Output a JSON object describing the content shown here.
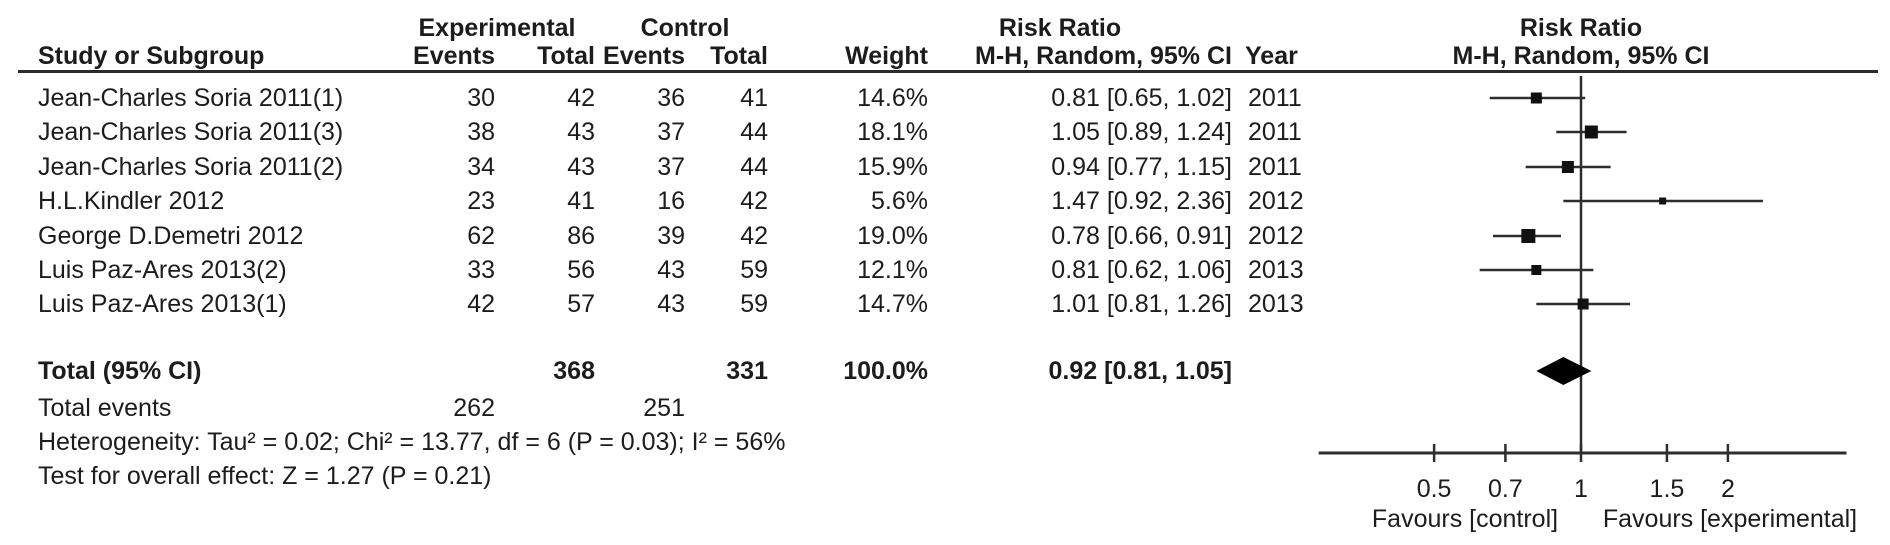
{
  "header": {
    "group_experimental": "Experimental",
    "group_control": "Control",
    "risk_ratio_left": "Risk Ratio",
    "risk_ratio_right": "Risk Ratio",
    "method_left": "M-H, Random, 95% CI",
    "method_right": "M-H, Random, 95% CI",
    "study": "Study or Subgroup",
    "events": "Events",
    "total": "Total",
    "events2": "Events",
    "total2": "Total",
    "weight": "Weight",
    "year": "Year"
  },
  "total_row": {
    "label": "Total (95% CI)",
    "exp_total": 368,
    "ctl_total": 331,
    "weight": "100.0%",
    "rr_text": "0.92 [0.81, 1.05]"
  },
  "total_events": {
    "label": "Total events",
    "exp": 262,
    "ctl": 251
  },
  "heterogeneity": "Heterogeneity: Tau² = 0.02; Chi² = 13.77, df = 6 (P = 0.03); I² = 56%",
  "overall_effect": "Test for overall effect: Z = 1.27 (P = 0.21)",
  "chart_data": {
    "type": "forest",
    "x_scale": "log",
    "xlim": [
      0.29,
      3.5
    ],
    "ticks": [
      0.5,
      0.7,
      1,
      1.5,
      2
    ],
    "tick_labels": [
      "0.5",
      "0.7",
      "1",
      "1.5",
      "2"
    ],
    "favours_left": "Favours [control]",
    "favours_right": "Favours [experimental]",
    "no_effect_value": 1,
    "studies": [
      {
        "name": "Jean-Charles Soria 2011(1)",
        "exp_events": 30,
        "exp_total": 42,
        "ctl_events": 36,
        "ctl_total": 41,
        "weight": "14.6%",
        "weight_pct": 14.6,
        "rr": 0.81,
        "ci_low": 0.65,
        "ci_high": 1.02,
        "rr_text": "0.81 [0.65, 1.02]",
        "year": 2011
      },
      {
        "name": "Jean-Charles Soria 2011(3)",
        "exp_events": 38,
        "exp_total": 43,
        "ctl_events": 37,
        "ctl_total": 44,
        "weight": "18.1%",
        "weight_pct": 18.1,
        "rr": 1.05,
        "ci_low": 0.89,
        "ci_high": 1.24,
        "rr_text": "1.05 [0.89, 1.24]",
        "year": 2011
      },
      {
        "name": "Jean-Charles Soria 2011(2)",
        "exp_events": 34,
        "exp_total": 43,
        "ctl_events": 37,
        "ctl_total": 44,
        "weight": "15.9%",
        "weight_pct": 15.9,
        "rr": 0.94,
        "ci_low": 0.77,
        "ci_high": 1.15,
        "rr_text": "0.94 [0.77, 1.15]",
        "year": 2011
      },
      {
        "name": "H.L.Kindler 2012",
        "exp_events": 23,
        "exp_total": 41,
        "ctl_events": 16,
        "ctl_total": 42,
        "weight": "5.6%",
        "weight_pct": 5.6,
        "rr": 1.47,
        "ci_low": 0.92,
        "ci_high": 2.36,
        "rr_text": "1.47 [0.92, 2.36]",
        "year": 2012
      },
      {
        "name": "George D.Demetri 2012",
        "exp_events": 62,
        "exp_total": 86,
        "ctl_events": 39,
        "ctl_total": 42,
        "weight": "19.0%",
        "weight_pct": 19.0,
        "rr": 0.78,
        "ci_low": 0.66,
        "ci_high": 0.91,
        "rr_text": "0.78 [0.66, 0.91]",
        "year": 2012
      },
      {
        "name": "Luis Paz-Ares 2013(2)",
        "exp_events": 33,
        "exp_total": 56,
        "ctl_events": 43,
        "ctl_total": 59,
        "weight": "12.1%",
        "weight_pct": 12.1,
        "rr": 0.81,
        "ci_low": 0.62,
        "ci_high": 1.06,
        "rr_text": "0.81 [0.62, 1.06]",
        "year": 2013
      },
      {
        "name": "Luis Paz-Ares 2013(1)",
        "exp_events": 42,
        "exp_total": 57,
        "ctl_events": 43,
        "ctl_total": 59,
        "weight": "14.7%",
        "weight_pct": 14.7,
        "rr": 1.01,
        "ci_low": 0.81,
        "ci_high": 1.26,
        "rr_text": "1.01 [0.81, 1.26]",
        "year": 2013
      }
    ],
    "overall": {
      "rr": 0.92,
      "ci_low": 0.81,
      "ci_high": 1.05
    }
  }
}
